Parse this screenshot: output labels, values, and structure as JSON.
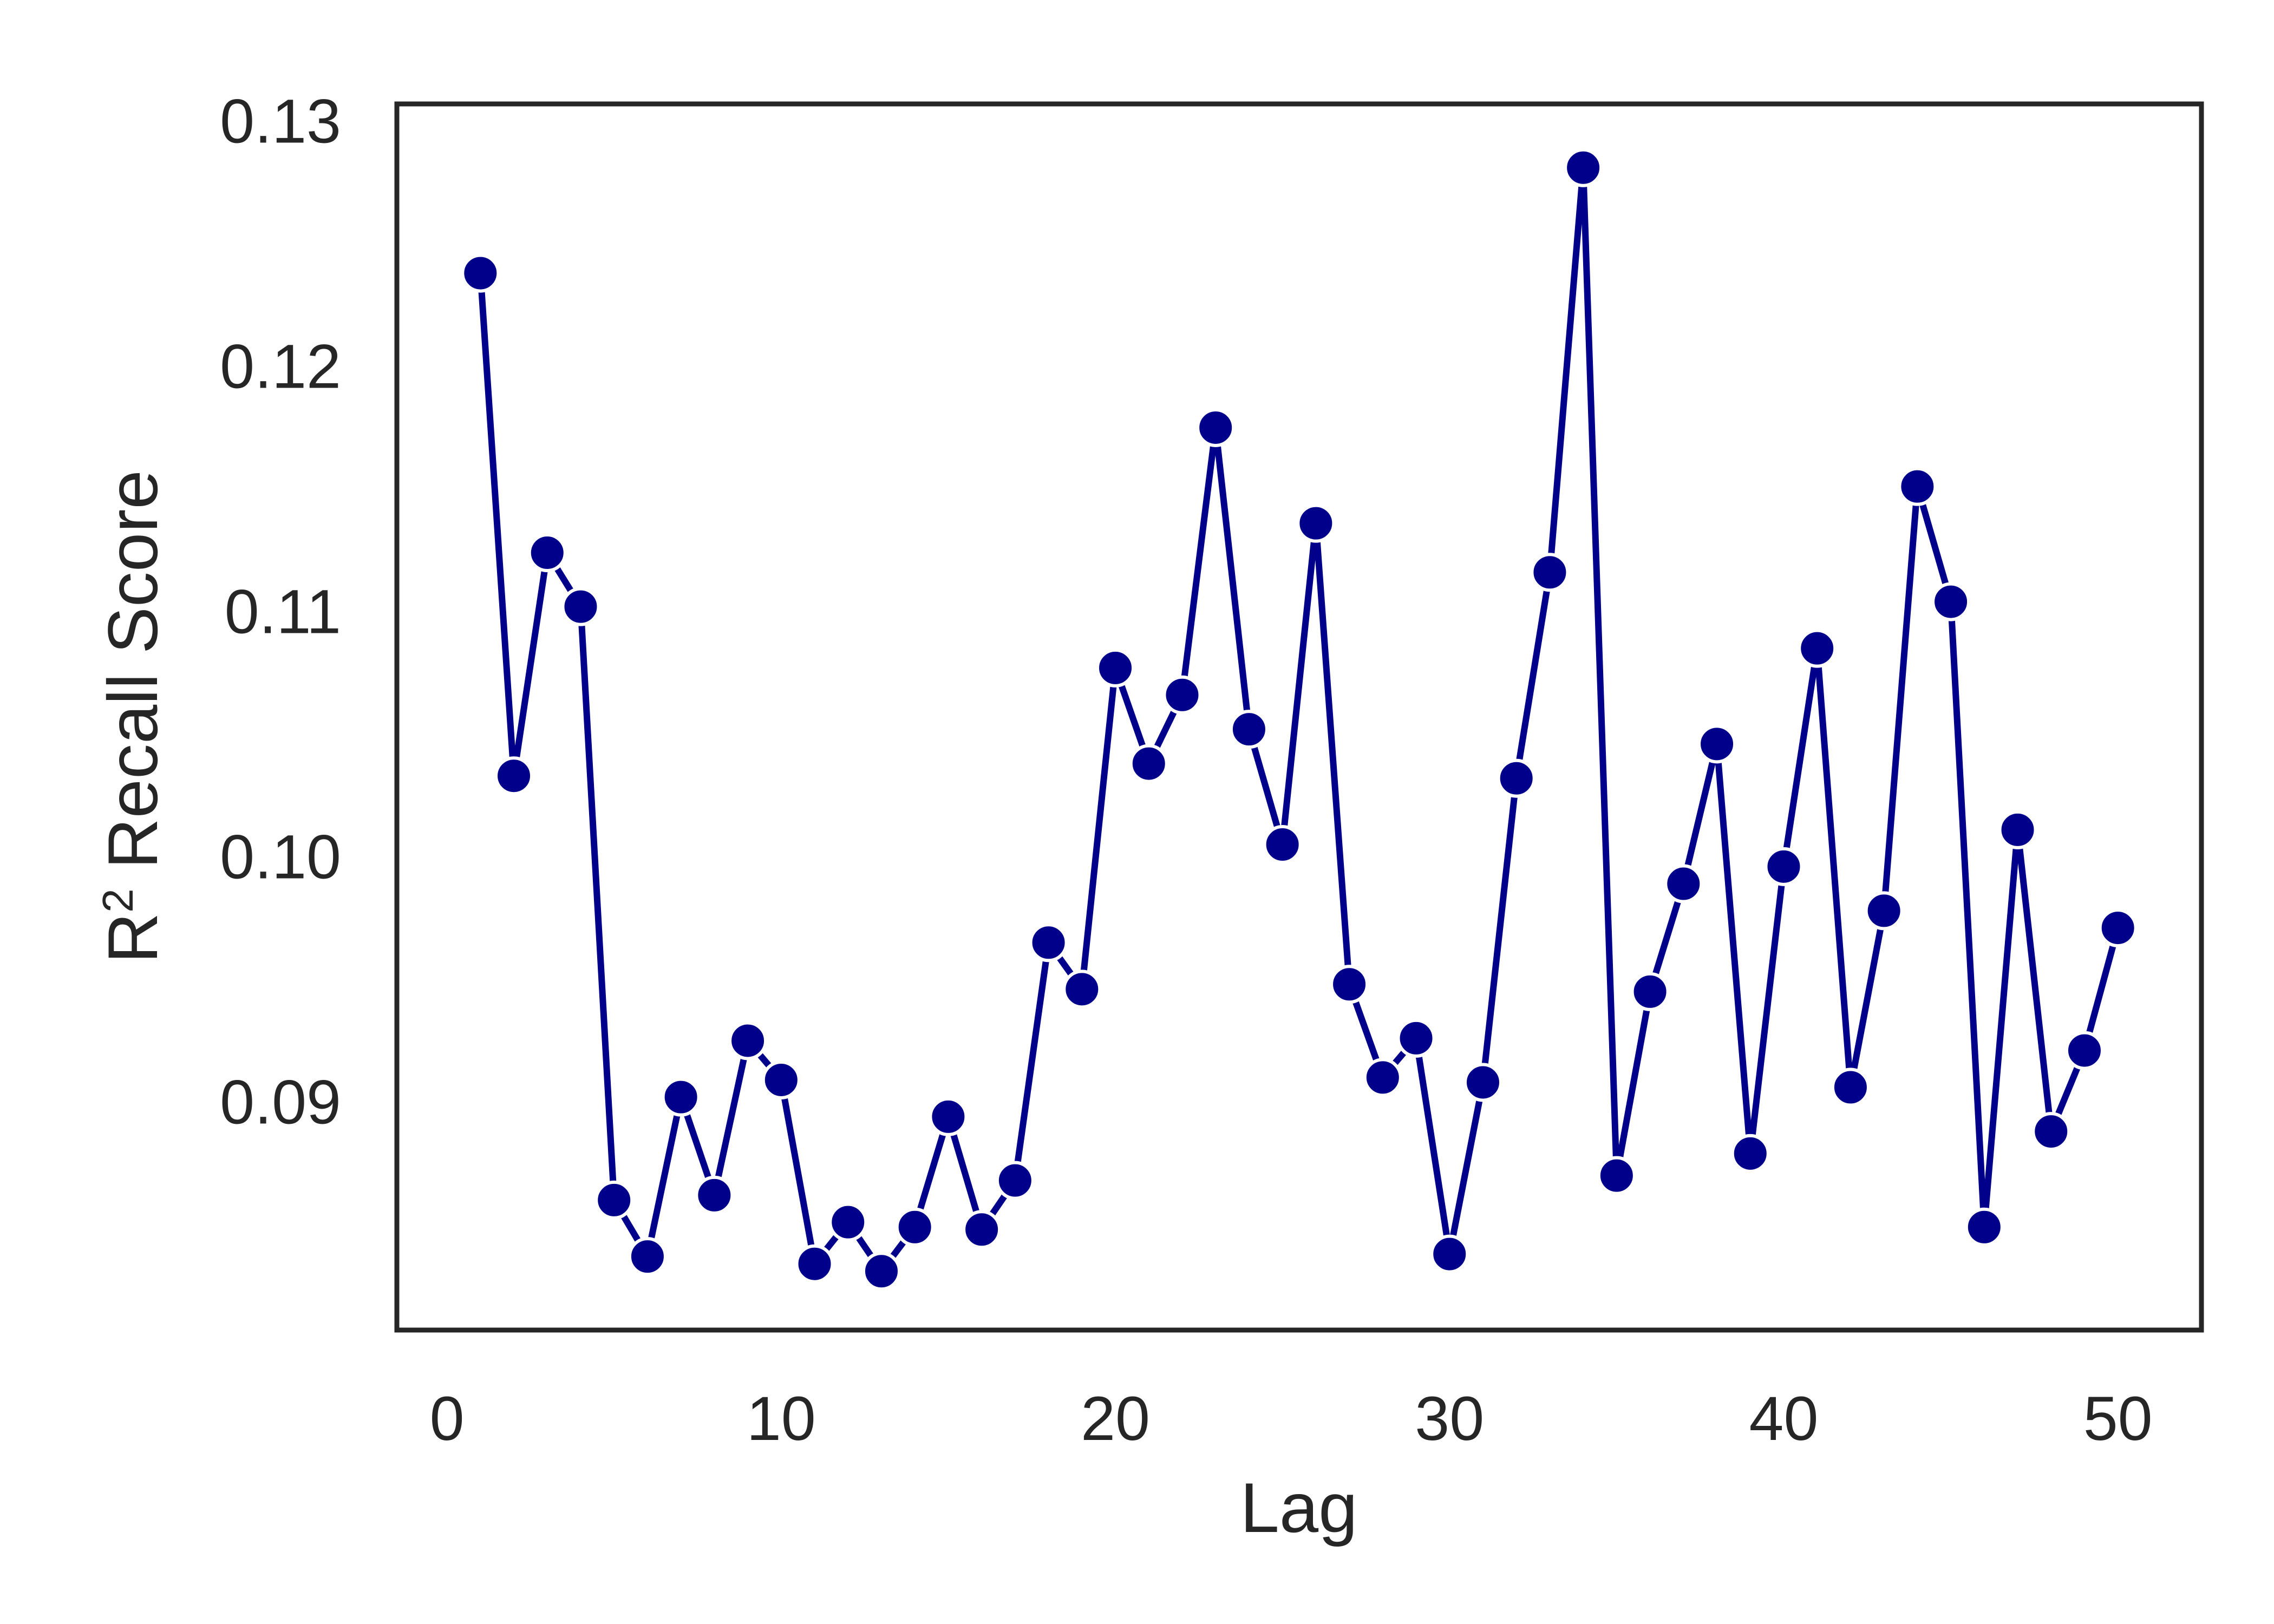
{
  "chart_data": {
    "type": "line",
    "xlabel": "Lag",
    "ylabel_base": "R",
    "ylabel_sup": "2",
    "ylabel_rest": " Recall Score",
    "xlim": [
      -1.5,
      52.5
    ],
    "ylim": [
      0.0807,
      0.1307
    ],
    "xticks": [
      0,
      10,
      20,
      30,
      40,
      50
    ],
    "yticks": [
      0.09,
      0.1,
      0.11,
      0.12,
      0.13
    ],
    "ytick_labels": [
      "0.09",
      "0.10",
      "0.11",
      "0.12",
      "0.13"
    ],
    "grid": false,
    "line_color": "#00008b",
    "marker_color": "#00008b",
    "marker_edge": "#ffffff",
    "series": [
      {
        "x": [
          1,
          2,
          3,
          4,
          5,
          6,
          7,
          8,
          9,
          10,
          11,
          12,
          13,
          14,
          15,
          16,
          17,
          18,
          19,
          20,
          21,
          22,
          23,
          24,
          25,
          26,
          27,
          28,
          29,
          30,
          31,
          32,
          33,
          34,
          35,
          36,
          37,
          38,
          39,
          40,
          41,
          42,
          43,
          44,
          45,
          46,
          47,
          48,
          49,
          50
        ],
        "y": [
          0.1238,
          0.1033,
          0.1124,
          0.1102,
          0.086,
          0.0837,
          0.0902,
          0.0862,
          0.0925,
          0.0909,
          0.0834,
          0.0851,
          0.0831,
          0.0849,
          0.0894,
          0.0848,
          0.0868,
          0.0965,
          0.0946,
          0.1077,
          0.1038,
          0.1066,
          0.1175,
          0.1052,
          0.1005,
          0.1136,
          0.0948,
          0.091,
          0.0926,
          0.0838,
          0.0908,
          0.1032,
          0.1116,
          0.1281,
          0.087,
          0.0945,
          0.0989,
          0.1046,
          0.0879,
          0.0996,
          0.1085,
          0.0906,
          0.0978,
          0.1151,
          0.1104,
          0.0849,
          0.1011,
          0.0888,
          0.0921,
          0.0971
        ]
      }
    ]
  }
}
